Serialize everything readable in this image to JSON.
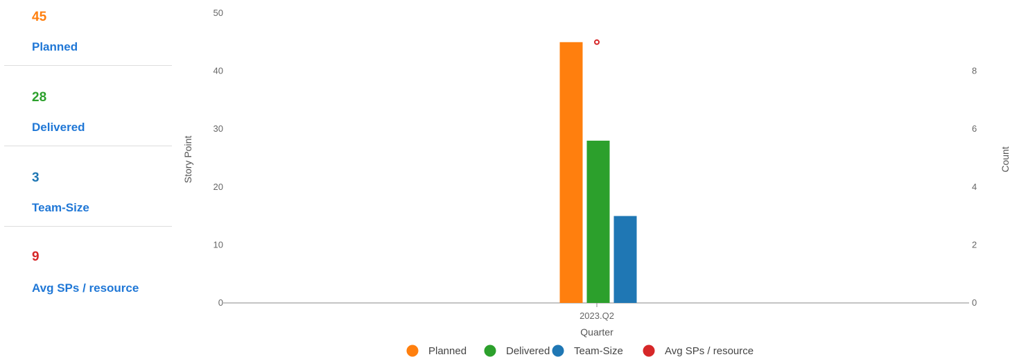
{
  "summary": {
    "cards": [
      {
        "value": "45",
        "label": "Planned",
        "color": "#ff7f0e"
      },
      {
        "value": "28",
        "label": "Delivered",
        "color": "#2ca02c"
      },
      {
        "value": "3",
        "label": "Team-Size",
        "color": "#1f77b4"
      },
      {
        "value": "9",
        "label": "Avg SPs / resource",
        "color": "#d62728"
      }
    ]
  },
  "chart_data": {
    "type": "bar",
    "categories": [
      "2023.Q2"
    ],
    "xlabel": "Quarter",
    "ylabel": "Story Point",
    "y2label": "Count",
    "ylim": [
      0,
      50
    ],
    "y2lim": [
      0,
      10
    ],
    "yticks": [
      0,
      10,
      20,
      30,
      40,
      50
    ],
    "y2ticks": [
      0,
      2,
      4,
      6,
      8
    ],
    "series": [
      {
        "name": "Planned",
        "axis": "left",
        "mark": "bar",
        "color": "#ff7f0e",
        "values": [
          45
        ]
      },
      {
        "name": "Delivered",
        "axis": "left",
        "mark": "bar",
        "color": "#2ca02c",
        "values": [
          28
        ]
      },
      {
        "name": "Team-Size",
        "axis": "right",
        "mark": "bar",
        "color": "#1f77b4",
        "values": [
          3
        ]
      },
      {
        "name": "Avg SPs / resource",
        "axis": "right",
        "mark": "point",
        "color": "#d62728",
        "values": [
          9
        ]
      }
    ],
    "grid": false,
    "legend": "bottom"
  }
}
